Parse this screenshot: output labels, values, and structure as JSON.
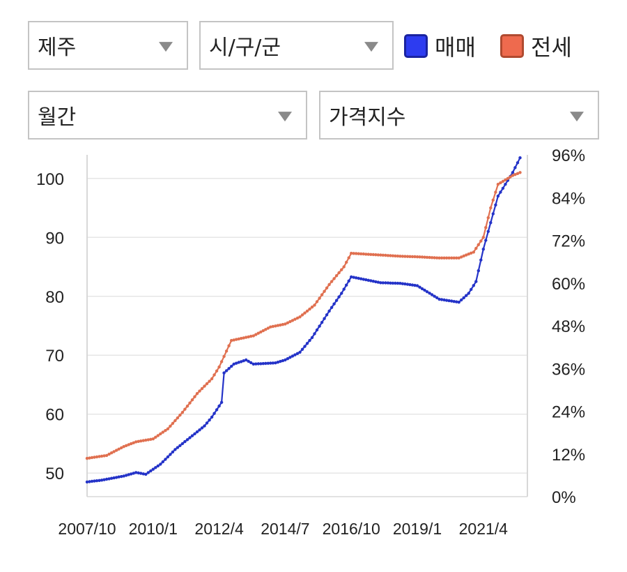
{
  "filters": {
    "region": "제주",
    "district": "시/구/군",
    "period": "월간",
    "metric": "가격지수"
  },
  "legend": [
    {
      "label": "매매",
      "color": "#2433c8",
      "fill": "#2d3cf0"
    },
    {
      "label": "전세",
      "color": "#e07050",
      "fill": "#ee6a4e"
    }
  ],
  "chart_data": {
    "type": "line",
    "x_tick_labels": [
      "2007/10",
      "2010/1",
      "2012/4",
      "2014/7",
      "2016/10",
      "2019/1",
      "2021/4"
    ],
    "x_range": [
      "2007-10",
      "2022-10"
    ],
    "y_left": {
      "ticks": [
        50,
        60,
        70,
        80,
        90,
        100
      ],
      "range": [
        46,
        104
      ]
    },
    "y_right": {
      "ticks": [
        "0%",
        "12%",
        "24%",
        "36%",
        "48%",
        "60%",
        "72%",
        "84%",
        "96%"
      ],
      "range": [
        0,
        96
      ]
    },
    "grid": "horizontal",
    "series": [
      {
        "name": "매매",
        "color": "#2433c8",
        "points": [
          [
            "2007-10",
            48.5
          ],
          [
            "2008-04",
            48.8
          ],
          [
            "2009-01",
            49.5
          ],
          [
            "2009-06",
            50.1
          ],
          [
            "2009-10",
            49.8
          ],
          [
            "2010-04",
            51.5
          ],
          [
            "2010-10",
            54.0
          ],
          [
            "2011-04",
            56.0
          ],
          [
            "2011-10",
            58.0
          ],
          [
            "2012-01",
            59.5
          ],
          [
            "2012-05",
            62.0
          ],
          [
            "2012-06",
            67.0
          ],
          [
            "2012-10",
            68.5
          ],
          [
            "2013-03",
            69.2
          ],
          [
            "2013-06",
            68.5
          ],
          [
            "2014-03",
            68.7
          ],
          [
            "2014-07",
            69.2
          ],
          [
            "2015-01",
            70.5
          ],
          [
            "2015-06",
            73.0
          ],
          [
            "2016-01",
            77.5
          ],
          [
            "2016-06",
            80.5
          ],
          [
            "2016-10",
            83.3
          ],
          [
            "2017-04",
            82.8
          ],
          [
            "2017-10",
            82.3
          ],
          [
            "2018-06",
            82.2
          ],
          [
            "2019-01",
            81.8
          ],
          [
            "2019-10",
            79.5
          ],
          [
            "2020-06",
            79.0
          ],
          [
            "2020-10",
            80.5
          ],
          [
            "2021-01",
            82.5
          ],
          [
            "2021-04",
            88.0
          ],
          [
            "2021-10",
            97.0
          ],
          [
            "2022-04",
            101.0
          ],
          [
            "2022-07",
            103.5
          ]
        ]
      },
      {
        "name": "전세",
        "color": "#e07050",
        "points": [
          [
            "2007-10",
            52.5
          ],
          [
            "2008-06",
            53.0
          ],
          [
            "2009-01",
            54.5
          ],
          [
            "2009-06",
            55.3
          ],
          [
            "2010-01",
            55.8
          ],
          [
            "2010-07",
            57.5
          ],
          [
            "2011-01",
            60.3
          ],
          [
            "2011-07",
            63.5
          ],
          [
            "2012-01",
            66.0
          ],
          [
            "2012-04",
            68.0
          ],
          [
            "2012-09",
            72.5
          ],
          [
            "2013-06",
            73.3
          ],
          [
            "2014-01",
            74.8
          ],
          [
            "2014-07",
            75.3
          ],
          [
            "2015-01",
            76.5
          ],
          [
            "2015-07",
            78.5
          ],
          [
            "2016-01",
            82.0
          ],
          [
            "2016-07",
            85.0
          ],
          [
            "2016-10",
            87.3
          ],
          [
            "2017-06",
            87.1
          ],
          [
            "2018-06",
            86.8
          ],
          [
            "2019-01",
            86.7
          ],
          [
            "2019-10",
            86.5
          ],
          [
            "2020-06",
            86.5
          ],
          [
            "2020-12",
            87.5
          ],
          [
            "2021-04",
            90.0
          ],
          [
            "2021-07",
            95.0
          ],
          [
            "2021-10",
            99.0
          ],
          [
            "2022-04",
            100.5
          ],
          [
            "2022-07",
            101.0
          ]
        ]
      }
    ]
  }
}
